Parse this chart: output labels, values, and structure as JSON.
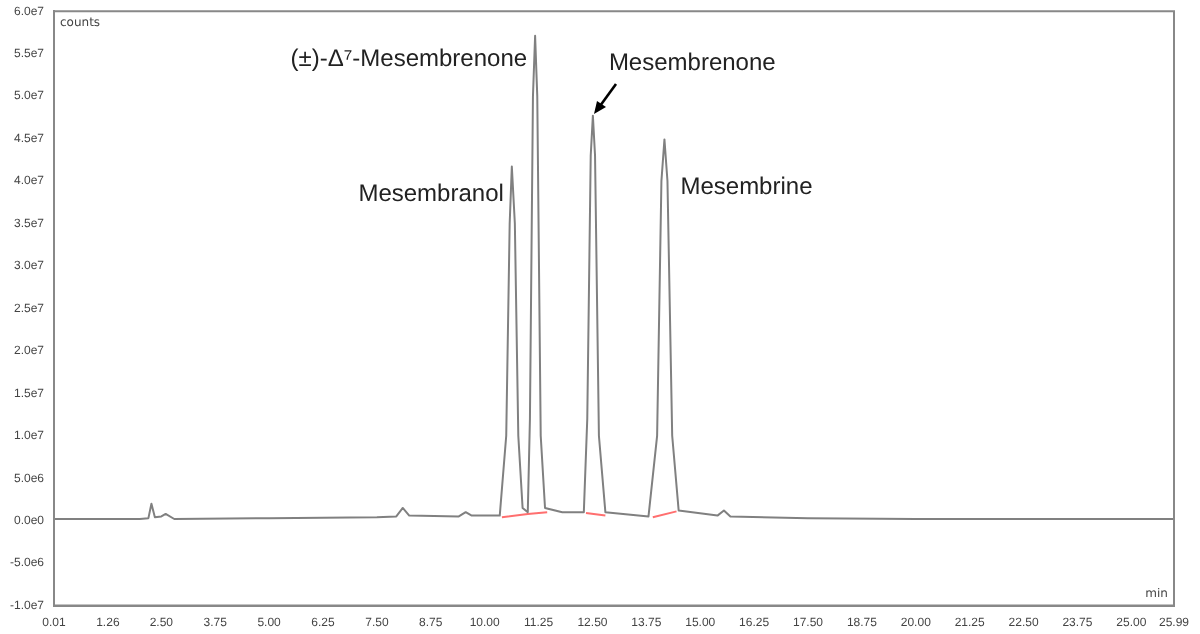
{
  "chart_data": {
    "type": "line",
    "xlabel": "min",
    "ylabel": "counts",
    "x": [
      0.01,
      2.0,
      2.2,
      2.27,
      2.35,
      2.5,
      2.6,
      2.8,
      5.0,
      7.5,
      7.95,
      8.1,
      8.25,
      9.4,
      9.56,
      9.7,
      10.35,
      10.5,
      10.58,
      10.63,
      10.7,
      10.78,
      10.88,
      11.0,
      11.05,
      11.12,
      11.17,
      11.22,
      11.3,
      11.4,
      11.8,
      12.3,
      12.38,
      12.46,
      12.51,
      12.56,
      12.65,
      12.8,
      13.8,
      14.0,
      14.1,
      14.17,
      14.24,
      14.35,
      14.5,
      15.4,
      15.55,
      15.7,
      17.5,
      20.0,
      25.99
    ],
    "series": [
      {
        "color": "#808080",
        "values": [
          200000,
          200000,
          300000,
          2000000,
          400000,
          500000,
          800000,
          200000,
          300000,
          400000,
          500000,
          1500000,
          600000,
          500000,
          1000000,
          600000,
          600000,
          10000000,
          35000000,
          41700000,
          35000000,
          10000000,
          1500000,
          1000000,
          12000000,
          50000000,
          57100000,
          50000000,
          10000000,
          1500000,
          1000000,
          1000000,
          12000000,
          43000000,
          47700000,
          43000000,
          10000000,
          1000000,
          500000,
          10000000,
          40000000,
          44900000,
          40000000,
          10000000,
          1200000,
          600000,
          1200000,
          500000,
          300000,
          200000,
          200000
        ]
      },
      {
        "color": "#ff6f6f",
        "x": [
          10.4,
          11.0,
          11.45,
          11.9,
          12.35,
          12.8,
          12.9,
          13.9,
          14.45
        ],
        "values": [
          400000,
          800000,
          1000000,
          null,
          900000,
          600000,
          null,
          400000,
          1100000
        ]
      }
    ],
    "xlim": [
      0.01,
      25.99
    ],
    "xticks": [
      0.01,
      1.26,
      {
        "value": 2.5,
        "label": "2.50"
      },
      3.75,
      {
        "value": 5,
        "label": "5.00"
      },
      6.25,
      {
        "value": 7.5,
        "label": "7.50"
      },
      8.75,
      {
        "value": 10,
        "label": "10.00"
      },
      11.25,
      {
        "value": 12.5,
        "label": "12.50"
      },
      13.75,
      {
        "value": 15,
        "label": "15.00"
      },
      16.25,
      {
        "value": 17.5,
        "label": "17.50"
      },
      18.75,
      {
        "value": 20,
        "label": "20.00"
      },
      21.25,
      {
        "value": 22.5,
        "label": "22.50"
      },
      23.75,
      {
        "value": 25,
        "label": "25.00"
      },
      25.99
    ],
    "ylim": [
      -10000000,
      60000000
    ],
    "yticks": [
      {
        "value": -10000000,
        "label": "-1.0e7"
      },
      {
        "value": -5000000,
        "label": "-5.0e6"
      },
      {
        "value": 0,
        "label": "0.0e0"
      },
      {
        "value": 5000000,
        "label": "5.0e6"
      },
      {
        "value": 10000000,
        "label": "1.0e7"
      },
      {
        "value": 15000000,
        "label": "1.5e7"
      },
      {
        "value": 20000000,
        "label": "2.0e7"
      },
      {
        "value": 25000000,
        "label": "2.5e7"
      },
      {
        "value": 30000000,
        "label": "3.0e7"
      },
      {
        "value": 35000000,
        "label": "3.5e7"
      },
      {
        "value": 40000000,
        "label": "4.0e7"
      },
      {
        "value": 45000000,
        "label": "4.5e7"
      },
      {
        "value": 50000000,
        "label": "5.0e7"
      },
      {
        "value": 55000000,
        "label": "5.5e7"
      },
      {
        "value": 60000000,
        "label": "6.0e7"
      }
    ],
    "annotations": [
      {
        "text": "Mesembranol",
        "x": 10.63,
        "y": 41700000
      },
      {
        "text": "(±)-Δ⁷-Mesembrenone",
        "x": 11.17,
        "y": 57100000
      },
      {
        "text": "Mesembrenone",
        "x": 12.51,
        "y": 47700000
      },
      {
        "text": "Mesembrine",
        "x": 14.17,
        "y": 44900000
      }
    ],
    "grid": false,
    "legend": false,
    "marker": "none",
    "line_style": "solid"
  }
}
